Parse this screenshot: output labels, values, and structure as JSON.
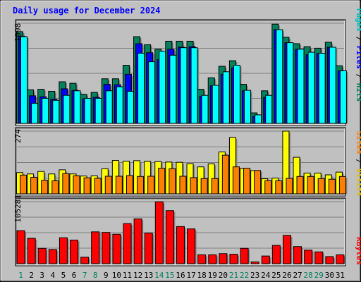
{
  "chart_data": [
    {
      "type": "bar",
      "title": "Daily usage for December 2024",
      "categories": [
        "1",
        "2",
        "3",
        "4",
        "5",
        "6",
        "7",
        "8",
        "9",
        "10",
        "11",
        "12",
        "13",
        "14",
        "15",
        "16",
        "17",
        "18",
        "19",
        "20",
        "21",
        "22",
        "23",
        "24",
        "25",
        "26",
        "27",
        "28",
        "29",
        "30",
        "31"
      ],
      "weekend_days": [
        "1",
        "7",
        "8",
        "14",
        "15",
        "21",
        "22",
        "28",
        "29"
      ],
      "ylim": [
        0,
        1998
      ],
      "y_tick_label": "1998",
      "legend": [
        "Pages",
        "Files",
        "Hits"
      ],
      "series": [
        {
          "name": "Hits",
          "color": "#00805c",
          "values": [
            1830,
            670,
            680,
            640,
            830,
            800,
            580,
            620,
            890,
            890,
            1160,
            1730,
            1570,
            1480,
            1640,
            1640,
            1640,
            680,
            910,
            1140,
            1250,
            780,
            210,
            650,
            1980,
            1720,
            1590,
            1530,
            1500,
            1620,
            1150
          ]
        },
        {
          "name": "Files",
          "color": "#0000ff",
          "values": [
            1740,
            550,
            530,
            480,
            690,
            660,
            490,
            520,
            780,
            770,
            980,
            1590,
            1410,
            1270,
            1480,
            1520,
            1530,
            540,
            750,
            980,
            1110,
            650,
            140,
            520,
            1870,
            1610,
            1480,
            1370,
            1390,
            1520,
            1050
          ]
        },
        {
          "name": "Pages",
          "color": "#00ffff",
          "values": [
            1730,
            400,
            500,
            460,
            560,
            650,
            500,
            500,
            650,
            730,
            640,
            1400,
            1230,
            1440,
            1360,
            1510,
            1510,
            560,
            760,
            1030,
            1160,
            660,
            170,
            560,
            1870,
            1610,
            1480,
            1420,
            1400,
            1520,
            1050
          ]
        }
      ]
    },
    {
      "type": "bar",
      "categories": [
        "1",
        "2",
        "3",
        "4",
        "5",
        "6",
        "7",
        "8",
        "9",
        "10",
        "11",
        "12",
        "13",
        "14",
        "15",
        "16",
        "17",
        "18",
        "19",
        "20",
        "21",
        "22",
        "23",
        "24",
        "25",
        "26",
        "27",
        "28",
        "29",
        "30",
        "31"
      ],
      "ylim": [
        0,
        274
      ],
      "y_tick_label": "274",
      "legend": [
        "Sites",
        "Visits"
      ],
      "series": [
        {
          "name": "Visits",
          "color": "#ffff00",
          "values": [
            93,
            87,
            98,
            87,
            105,
            87,
            78,
            79,
            110,
            146,
            143,
            145,
            142,
            141,
            139,
            138,
            132,
            118,
            131,
            183,
            246,
            111,
            101,
            66,
            69,
            274,
            160,
            91,
            91,
            83,
            95
          ]
        },
        {
          "name": "Sites",
          "color": "#ff8000",
          "values": [
            82,
            72,
            59,
            57,
            89,
            79,
            70,
            68,
            77,
            77,
            80,
            76,
            77,
            112,
            110,
            77,
            71,
            67,
            67,
            169,
            118,
            112,
            102,
            58,
            57,
            68,
            76,
            76,
            67,
            64,
            76
          ]
        }
      ]
    },
    {
      "type": "bar",
      "categories": [
        "1",
        "2",
        "3",
        "4",
        "5",
        "6",
        "7",
        "8",
        "9",
        "10",
        "11",
        "12",
        "13",
        "14",
        "15",
        "16",
        "17",
        "18",
        "19",
        "20",
        "21",
        "22",
        "23",
        "24",
        "25",
        "26",
        "27",
        "28",
        "29",
        "30",
        "31"
      ],
      "ylim": [
        0,
        105281
      ],
      "y_tick_label": "105281",
      "legend": [
        "KBytes"
      ],
      "series": [
        {
          "name": "KBytes",
          "color": "#ff0000",
          "values": [
            56000,
            43000,
            26000,
            24000,
            44000,
            40000,
            11000,
            54000,
            53000,
            50000,
            68000,
            76000,
            52000,
            105000,
            90000,
            63000,
            59000,
            15000,
            15000,
            17000,
            16000,
            26000,
            3000,
            13000,
            31000,
            48000,
            29000,
            23000,
            20000,
            12000,
            15000
          ]
        }
      ]
    }
  ]
}
